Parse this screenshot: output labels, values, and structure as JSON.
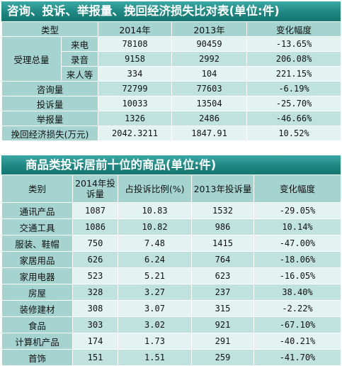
{
  "table1": {
    "title": "咨询、投诉、举报量、挽回经济损失比对表(单位:件)",
    "headers": [
      "类型",
      "2014年",
      "2013年",
      "变化幅度"
    ],
    "group_label": "受理总量",
    "group_rows": [
      {
        "sub": "来电",
        "y2014": "78108",
        "y2013": "90459",
        "change": "-13.65%"
      },
      {
        "sub": "录音",
        "y2014": "9158",
        "y2013": "2992",
        "change": "206.08%"
      },
      {
        "sub": "来人等",
        "y2014": "334",
        "y2013": "104",
        "change": "221.15%"
      }
    ],
    "rows": [
      {
        "type": "咨询量",
        "y2014": "72799",
        "y2013": "77603",
        "change": "-6.19%"
      },
      {
        "type": "投诉量",
        "y2014": "10033",
        "y2013": "13504",
        "change": "-25.70%"
      },
      {
        "type": "举报量",
        "y2014": "1326",
        "y2013": "2486",
        "change": "-46.66%"
      },
      {
        "type": "挽回经济损失(万元)",
        "y2014": "2042.3211",
        "y2013": "1847.91",
        "change": "10.52%"
      }
    ]
  },
  "table2": {
    "title": "商品类投诉居前十位的商品(单位:件)",
    "headers": [
      "类别",
      "2014年投诉量",
      "占投诉比例(%)",
      "2013年投诉量",
      "变化幅度"
    ],
    "rows": [
      {
        "category": "通讯产品",
        "c2014": "1087",
        "ratio": "10.83",
        "c2013": "1532",
        "change": "-29.05%"
      },
      {
        "category": "交通工具",
        "c2014": "1086",
        "ratio": "10.82",
        "c2013": "986",
        "change": "10.14%"
      },
      {
        "category": "服装、鞋帽",
        "c2014": "750",
        "ratio": "7.48",
        "c2013": "1415",
        "change": "-47.00%"
      },
      {
        "category": "家居用品",
        "c2014": "626",
        "ratio": "6.24",
        "c2013": "764",
        "change": "-18.06%"
      },
      {
        "category": "家用电器",
        "c2014": "523",
        "ratio": "5.21",
        "c2013": "623",
        "change": "-16.05%"
      },
      {
        "category": "房屋",
        "c2014": "328",
        "ratio": "3.27",
        "c2013": "237",
        "change": "38.40%"
      },
      {
        "category": "装修建材",
        "c2014": "308",
        "ratio": "3.07",
        "c2013": "315",
        "change": "-2.22%"
      },
      {
        "category": "食品",
        "c2014": "303",
        "ratio": "3.02",
        "c2013": "921",
        "change": "-67.10%"
      },
      {
        "category": "计算机产品",
        "c2014": "174",
        "ratio": "1.73",
        "c2013": "291",
        "change": "-40.21%"
      },
      {
        "category": "首饰",
        "c2014": "151",
        "ratio": "1.51",
        "c2013": "259",
        "change": "-41.70%"
      }
    ]
  }
}
